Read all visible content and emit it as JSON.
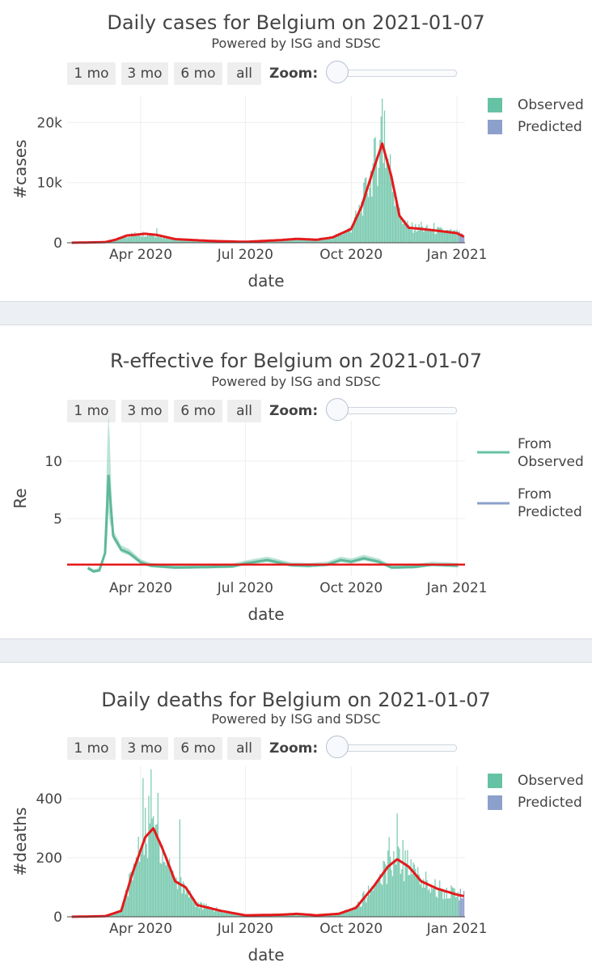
{
  "buttons": [
    "1 mo",
    "3 mo",
    "6 mo",
    "all"
  ],
  "zoom_label": "Zoom:",
  "chart_data": [
    {
      "type": "bar",
      "title": "Daily cases for Belgium on 2021-01-07",
      "subtitle": "Powered by ISG and SDSC",
      "xlabel": "date",
      "ylabel": "#cases",
      "x_ticks": [
        "Apr 2020",
        "Jul 2020",
        "Oct 2020",
        "Jan 2021"
      ],
      "y_ticks": [
        "0",
        "10k",
        "20k"
      ],
      "ylim": [
        0,
        24500
      ],
      "legend": [
        "Observed",
        "Predicted"
      ],
      "colors": {
        "observed": "#66c2a5",
        "predicted": "#8da0cb",
        "line": "#e41a1c"
      },
      "observed_x_start": "2020-02-01",
      "observed_x_end": "2021-01-02",
      "predicted_x_start": "2021-01-03",
      "predicted_x_end": "2021-01-07",
      "series_profile": [
        [
          "2020-02-01",
          0
        ],
        [
          "2020-03-01",
          100
        ],
        [
          "2020-03-10",
          500
        ],
        [
          "2020-03-20",
          1200
        ],
        [
          "2020-04-05",
          1500
        ],
        [
          "2020-04-15",
          1300
        ],
        [
          "2020-05-01",
          600
        ],
        [
          "2020-06-01",
          300
        ],
        [
          "2020-07-01",
          150
        ],
        [
          "2020-08-01",
          450
        ],
        [
          "2020-08-15",
          650
        ],
        [
          "2020-09-01",
          500
        ],
        [
          "2020-09-15",
          900
        ],
        [
          "2020-10-01",
          2300
        ],
        [
          "2020-10-10",
          6000
        ],
        [
          "2020-10-20",
          12000
        ],
        [
          "2020-10-28",
          16500
        ],
        [
          "2020-11-05",
          11000
        ],
        [
          "2020-11-12",
          4500
        ],
        [
          "2020-11-20",
          2500
        ],
        [
          "2020-12-01",
          2300
        ],
        [
          "2020-12-15",
          2000
        ],
        [
          "2021-01-01",
          1600
        ],
        [
          "2021-01-07",
          1000
        ]
      ],
      "spikes": [
        [
          "2020-10-28",
          24000
        ],
        [
          "2020-10-27",
          21000
        ],
        [
          "2020-10-30",
          22000
        ],
        [
          "2020-11-02",
          14000
        ],
        [
          "2020-11-10",
          6000
        ],
        [
          "2020-12-01",
          3500
        ],
        [
          "2020-12-12",
          3300
        ],
        [
          "2020-04-15",
          2400
        ]
      ]
    },
    {
      "type": "line",
      "title": "R-effective for Belgium on 2021-01-07",
      "subtitle": "Powered by ISG and SDSC",
      "xlabel": "date",
      "ylabel": "Re",
      "x_ticks": [
        "Apr 2020",
        "Jul 2020",
        "Oct 2020",
        "Jan 2021"
      ],
      "y_ticks": [
        "5",
        "10"
      ],
      "ylim": [
        0,
        13.5
      ],
      "legend": [
        "From Observed",
        "From Predicted"
      ],
      "colors": {
        "observed": "#66c2a5",
        "predicted": "#8da0cb",
        "line": "#e41a1c"
      },
      "threshold": 1,
      "series_profile": [
        [
          "2020-02-15",
          0.7
        ],
        [
          "2020-02-20",
          0.4
        ],
        [
          "2020-02-25",
          0.5
        ],
        [
          "2020-03-01",
          2.0
        ],
        [
          "2020-03-04",
          8.8
        ],
        [
          "2020-03-08",
          3.5
        ],
        [
          "2020-03-15",
          2.3
        ],
        [
          "2020-03-22",
          2.0
        ],
        [
          "2020-04-01",
          1.2
        ],
        [
          "2020-04-10",
          0.9
        ],
        [
          "2020-05-01",
          0.75
        ],
        [
          "2020-06-01",
          0.8
        ],
        [
          "2020-06-20",
          0.85
        ],
        [
          "2020-07-01",
          1.1
        ],
        [
          "2020-07-20",
          1.4
        ],
        [
          "2020-08-10",
          0.95
        ],
        [
          "2020-08-25",
          0.9
        ],
        [
          "2020-09-10",
          1.0
        ],
        [
          "2020-09-22",
          1.4
        ],
        [
          "2020-10-01",
          1.25
        ],
        [
          "2020-10-12",
          1.55
        ],
        [
          "2020-10-25",
          1.25
        ],
        [
          "2020-11-05",
          0.75
        ],
        [
          "2020-11-25",
          0.8
        ],
        [
          "2020-12-10",
          1.0
        ],
        [
          "2021-01-02",
          0.9
        ]
      ],
      "spike_band_peak": [
        "2020-03-04",
        13
      ]
    },
    {
      "type": "bar",
      "title": "Daily deaths for Belgium on 2021-01-07",
      "subtitle": "Powered by ISG and SDSC",
      "xlabel": "date",
      "ylabel": "#deaths",
      "x_ticks": [
        "Apr 2020",
        "Jul 2020",
        "Oct 2020",
        "Jan 2021"
      ],
      "y_ticks": [
        "0",
        "200",
        "400"
      ],
      "ylim": [
        0,
        510
      ],
      "legend": [
        "Observed",
        "Predicted"
      ],
      "colors": {
        "observed": "#66c2a5",
        "predicted": "#8da0cb",
        "line": "#e41a1c"
      },
      "observed_x_start": "2020-02-01",
      "observed_x_end": "2021-01-02",
      "predicted_x_start": "2021-01-03",
      "predicted_x_end": "2021-01-07",
      "series_profile": [
        [
          "2020-02-01",
          0
        ],
        [
          "2020-03-01",
          2
        ],
        [
          "2020-03-15",
          20
        ],
        [
          "2020-03-25",
          150
        ],
        [
          "2020-04-05",
          270
        ],
        [
          "2020-04-12",
          300
        ],
        [
          "2020-04-20",
          230
        ],
        [
          "2020-05-01",
          120
        ],
        [
          "2020-05-10",
          100
        ],
        [
          "2020-05-20",
          40
        ],
        [
          "2020-06-10",
          20
        ],
        [
          "2020-07-01",
          5
        ],
        [
          "2020-08-01",
          7
        ],
        [
          "2020-08-15",
          10
        ],
        [
          "2020-09-01",
          5
        ],
        [
          "2020-09-20",
          10
        ],
        [
          "2020-10-05",
          30
        ],
        [
          "2020-10-20",
          100
        ],
        [
          "2020-11-02",
          170
        ],
        [
          "2020-11-10",
          195
        ],
        [
          "2020-11-20",
          170
        ],
        [
          "2020-12-01",
          120
        ],
        [
          "2020-12-15",
          95
        ],
        [
          "2021-01-01",
          75
        ],
        [
          "2021-01-07",
          70
        ]
      ],
      "spikes": [
        [
          "2020-04-10",
          500
        ],
        [
          "2020-04-08",
          410
        ],
        [
          "2020-04-16",
          420
        ],
        [
          "2020-04-03",
          470
        ],
        [
          "2020-05-05",
          330
        ],
        [
          "2020-11-10",
          350
        ],
        [
          "2020-11-03",
          270
        ],
        [
          "2020-11-15",
          260
        ]
      ]
    }
  ]
}
